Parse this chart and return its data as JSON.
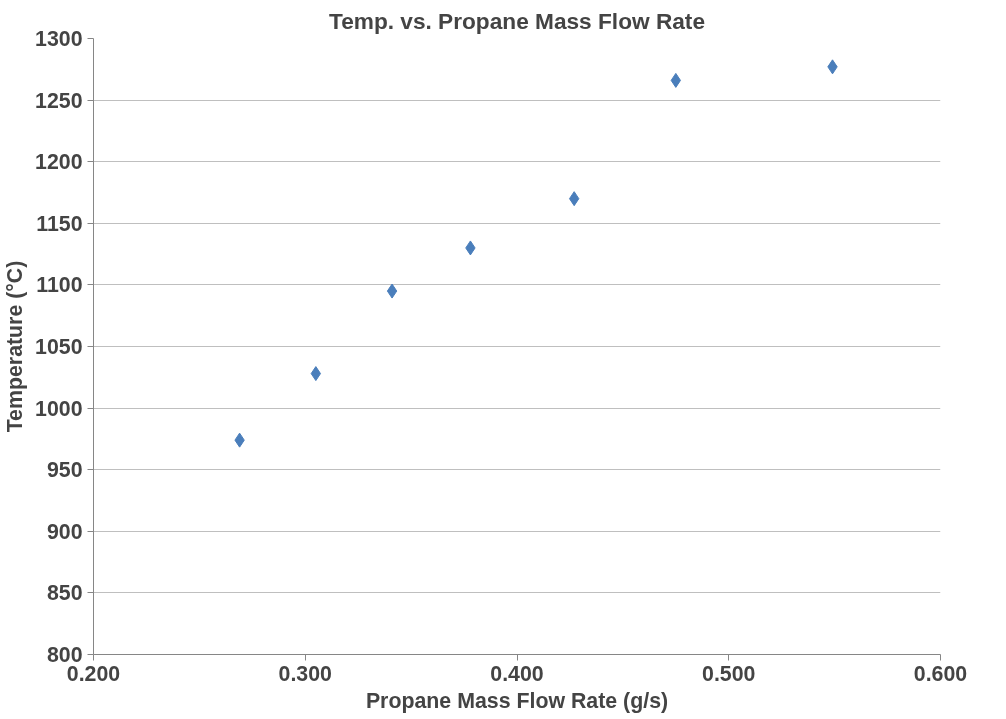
{
  "chart_data": {
    "type": "scatter",
    "title": "Temp. vs. Propane Mass Flow Rate",
    "xlabel": "Propane Mass Flow Rate (g/s)",
    "ylabel": "Temperature (°C)",
    "x": [
      0.269,
      0.305,
      0.341,
      0.378,
      0.427,
      0.475,
      0.549
    ],
    "series": [
      {
        "color": "#4a7ebb",
        "values": [
          974,
          1028,
          1095,
          1130,
          1170,
          1266,
          1277
        ]
      }
    ],
    "xlim": [
      0.2,
      0.6
    ],
    "xticks": [
      {
        "value": 0.2,
        "label": "0.200"
      },
      {
        "value": 0.3,
        "label": "0.300"
      },
      {
        "value": 0.4,
        "label": "0.400"
      },
      {
        "value": 0.5,
        "label": "0.500"
      },
      {
        "value": 0.6,
        "label": "0.600"
      }
    ],
    "ylim": [
      800,
      1300
    ],
    "yticks": [
      800,
      850,
      900,
      950,
      1000,
      1050,
      1100,
      1150,
      1200,
      1250,
      1300
    ],
    "grid": "y",
    "marker": "diamond"
  }
}
